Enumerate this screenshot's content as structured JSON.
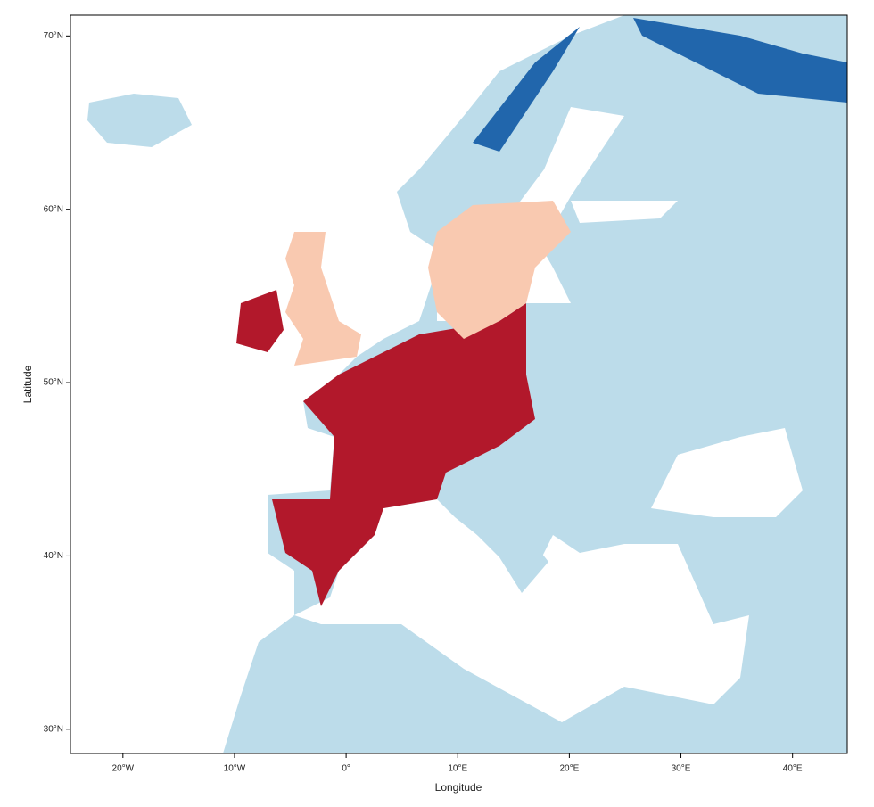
{
  "chart_data": {
    "type": "map",
    "x_label": "Longitude",
    "y_label": "Latitude",
    "xlim": [
      -24.7,
      44.9
    ],
    "ylim": [
      28.6,
      71.2
    ],
    "xticks": [
      {
        "value": -20,
        "label": "20°W"
      },
      {
        "value": -10,
        "label": "10°W"
      },
      {
        "value": 0,
        "label": "0°"
      },
      {
        "value": 10,
        "label": "10°E"
      },
      {
        "value": 20,
        "label": "20°E"
      },
      {
        "value": 30,
        "label": "30°E"
      },
      {
        "value": 40,
        "label": "40°E"
      }
    ],
    "yticks": [
      {
        "value": 30,
        "label": "30°N"
      },
      {
        "value": 40,
        "label": "40°N"
      },
      {
        "value": 50,
        "label": "50°N"
      },
      {
        "value": 60,
        "label": "60°N"
      },
      {
        "value": 70,
        "label": "70°N"
      }
    ]
  }
}
